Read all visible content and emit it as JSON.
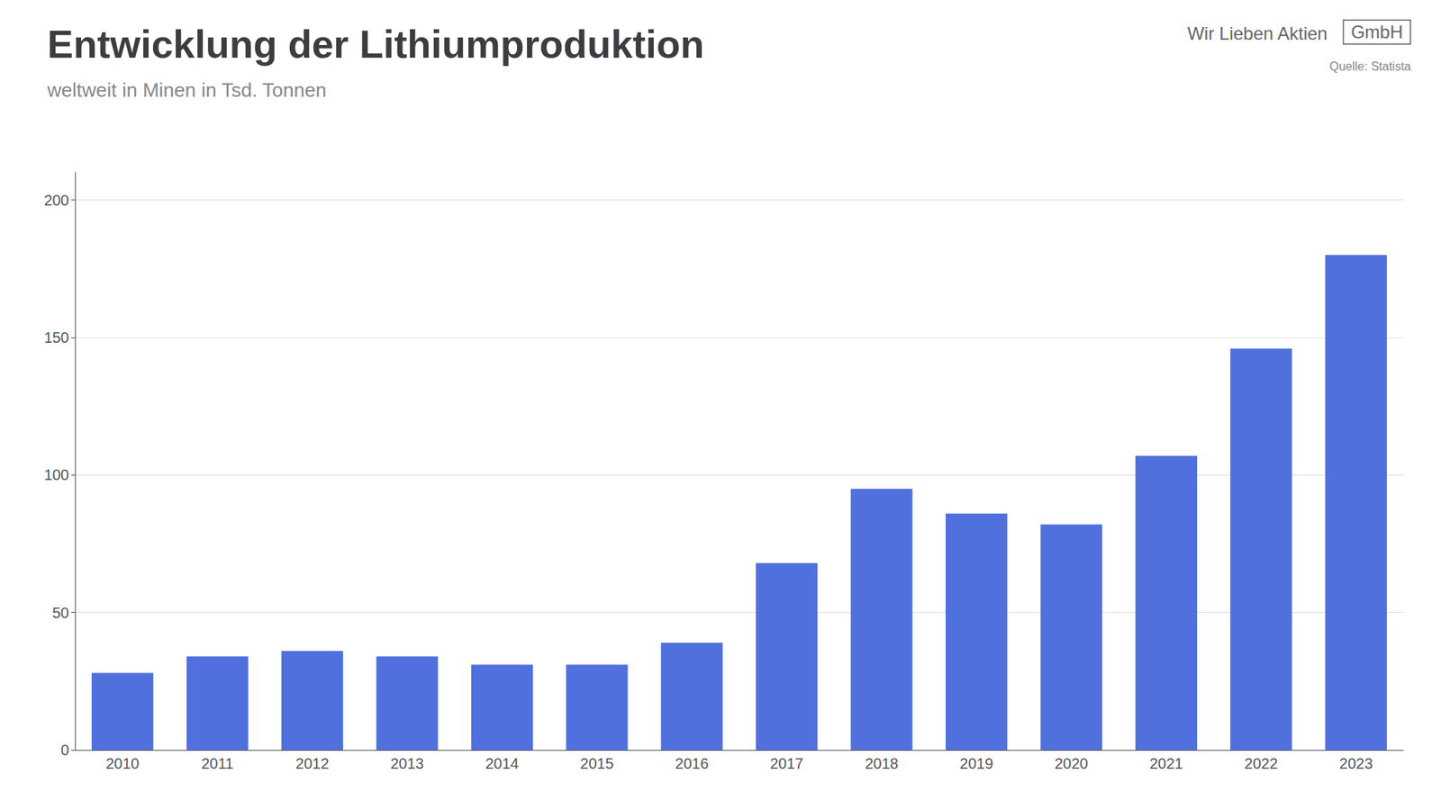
{
  "chart_data": {
    "type": "bar",
    "title": "Entwicklung der Lithiumproduktion",
    "subtitle": "weltweit in Minen in Tsd. Tonnen",
    "annotations": [
      "Wir Lieben Aktien",
      "GmbH",
      "Quelle: Statista"
    ],
    "categories": [
      "2010",
      "2011",
      "2012",
      "2013",
      "2014",
      "2015",
      "2016",
      "2017",
      "2018",
      "2019",
      "2020",
      "2021",
      "2022",
      "2023"
    ],
    "values": [
      28,
      34,
      36,
      34,
      31,
      31,
      39,
      68,
      95,
      86,
      82,
      107,
      146,
      180
    ],
    "ylim": [
      0,
      210
    ],
    "yticks": [
      0,
      50,
      100,
      150,
      200
    ],
    "grid": true
  }
}
